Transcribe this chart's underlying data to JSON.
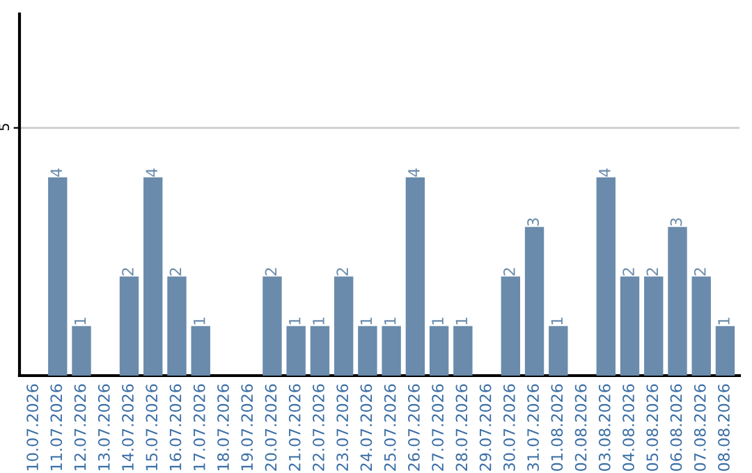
{
  "chart_data": {
    "type": "bar",
    "categories": [
      "10.07.2026",
      "11.07.2026",
      "12.07.2026",
      "13.07.2026",
      "14.07.2026",
      "15.07.2026",
      "16.07.2026",
      "17.07.2026",
      "18.07.2026",
      "19.07.2026",
      "20.07.2026",
      "21.07.2026",
      "22.07.2026",
      "23.07.2026",
      "24.07.2026",
      "25.07.2026",
      "26.07.2026",
      "27.07.2026",
      "28.07.2026",
      "29.07.2026",
      "30.07.2026",
      "31.07.2026",
      "01.08.2026",
      "02.08.2026",
      "03.08.2026",
      "04.08.2026",
      "05.08.2026",
      "06.08.2026",
      "07.08.2026",
      "08.08.2026"
    ],
    "values": [
      0,
      4,
      1,
      0,
      2,
      4,
      2,
      1,
      0,
      0,
      2,
      1,
      1,
      2,
      1,
      1,
      4,
      1,
      1,
      0,
      2,
      3,
      1,
      0,
      4,
      2,
      2,
      3,
      2,
      1
    ],
    "value_labels": [
      null,
      "4",
      "1",
      null,
      "2",
      "4",
      "2",
      "1",
      null,
      null,
      "2",
      "1",
      "1",
      "2",
      "1",
      "1",
      "4",
      "1",
      "1",
      null,
      "2",
      "3",
      "1",
      null,
      "4",
      "2",
      "2",
      "3",
      "2",
      "1"
    ],
    "color": "#6a8bab",
    "ylim": [
      0,
      7.3
    ],
    "yticks": [
      5
    ],
    "grid": "y"
  }
}
